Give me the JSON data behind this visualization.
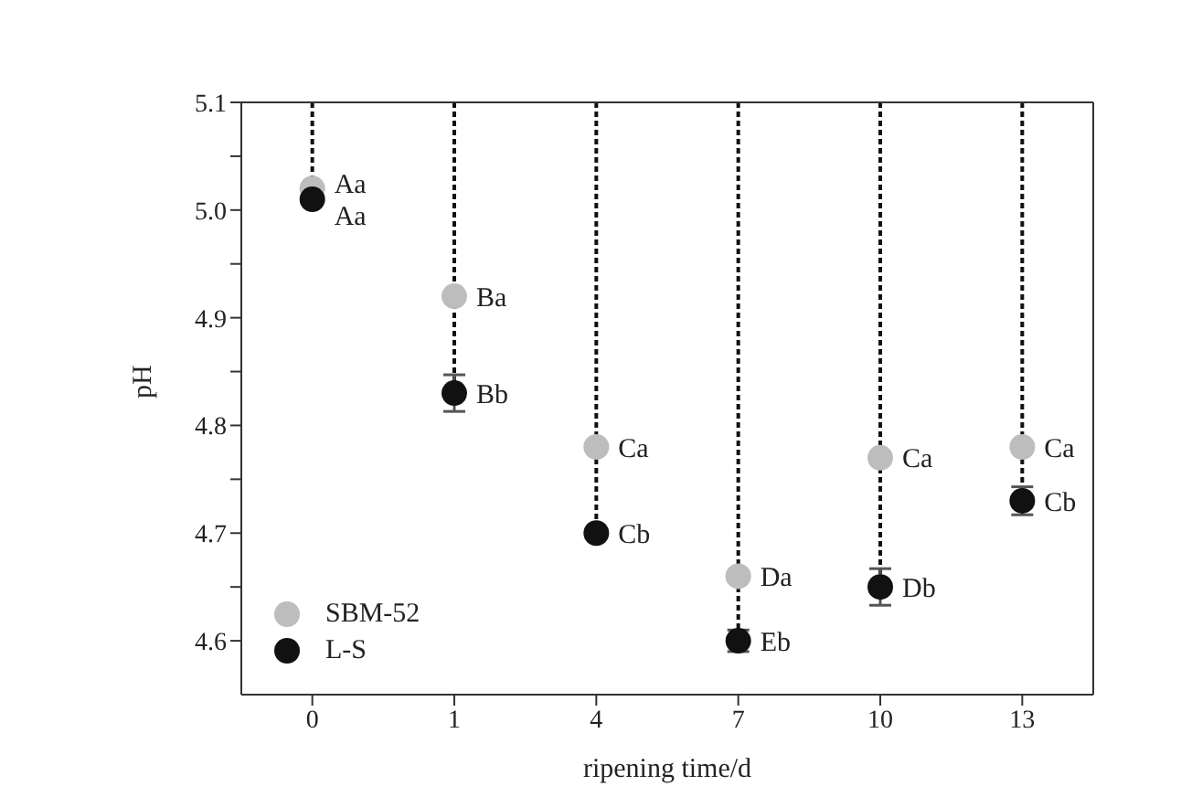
{
  "chart_data": {
    "type": "scatter",
    "xlabel": "ripening time/d",
    "ylabel": "pH",
    "categories": [
      "0",
      "1",
      "4",
      "7",
      "10",
      "13"
    ],
    "series": [
      {
        "name": "SBM-52",
        "color": "#bdbdbd",
        "values": [
          5.02,
          4.92,
          4.78,
          4.66,
          4.77,
          4.78
        ]
      },
      {
        "name": "L-S",
        "color": "#111111",
        "values": [
          5.01,
          4.83,
          4.7,
          4.6,
          4.65,
          4.73
        ],
        "errors": [
          null,
          0.017,
          null,
          0.01,
          0.017,
          0.013
        ]
      }
    ],
    "ylim": [
      4.55,
      5.1
    ],
    "yticks": [
      4.6,
      {
        "value": 4.65,
        "label": null
      },
      4.7,
      {
        "value": 4.75,
        "label": null
      },
      4.8,
      {
        "value": 4.85,
        "label": null
      },
      4.9,
      {
        "value": 4.95,
        "label": null
      },
      {
        "value": 5.0,
        "label": "5.0"
      },
      {
        "value": 5.05,
        "label": null
      },
      5.1
    ],
    "marker": "circle",
    "grid": "x",
    "legend": "bottom left",
    "line_style": "dashed",
    "annotations": [
      {
        "text": "Aa",
        "x": "0",
        "y": 5.025
      },
      {
        "text": "Aa",
        "x": "0",
        "y": 4.995
      },
      {
        "text": "Ba",
        "x": "1",
        "y": 4.92
      },
      {
        "text": "Bb",
        "x": "1",
        "y": 4.83
      },
      {
        "text": "Ca",
        "x": "4",
        "y": 4.78
      },
      {
        "text": "Cb",
        "x": "4",
        "y": 4.7
      },
      {
        "text": "Da",
        "x": "7",
        "y": 4.66
      },
      {
        "text": "Eb",
        "x": "7",
        "y": 4.6
      },
      {
        "text": "Ca",
        "x": "10",
        "y": 4.77
      },
      {
        "text": "Db",
        "x": "10",
        "y": 4.65
      },
      {
        "text": "Ca",
        "x": "13",
        "y": 4.78
      },
      {
        "text": "Cb",
        "x": "13",
        "y": 4.73
      }
    ]
  }
}
